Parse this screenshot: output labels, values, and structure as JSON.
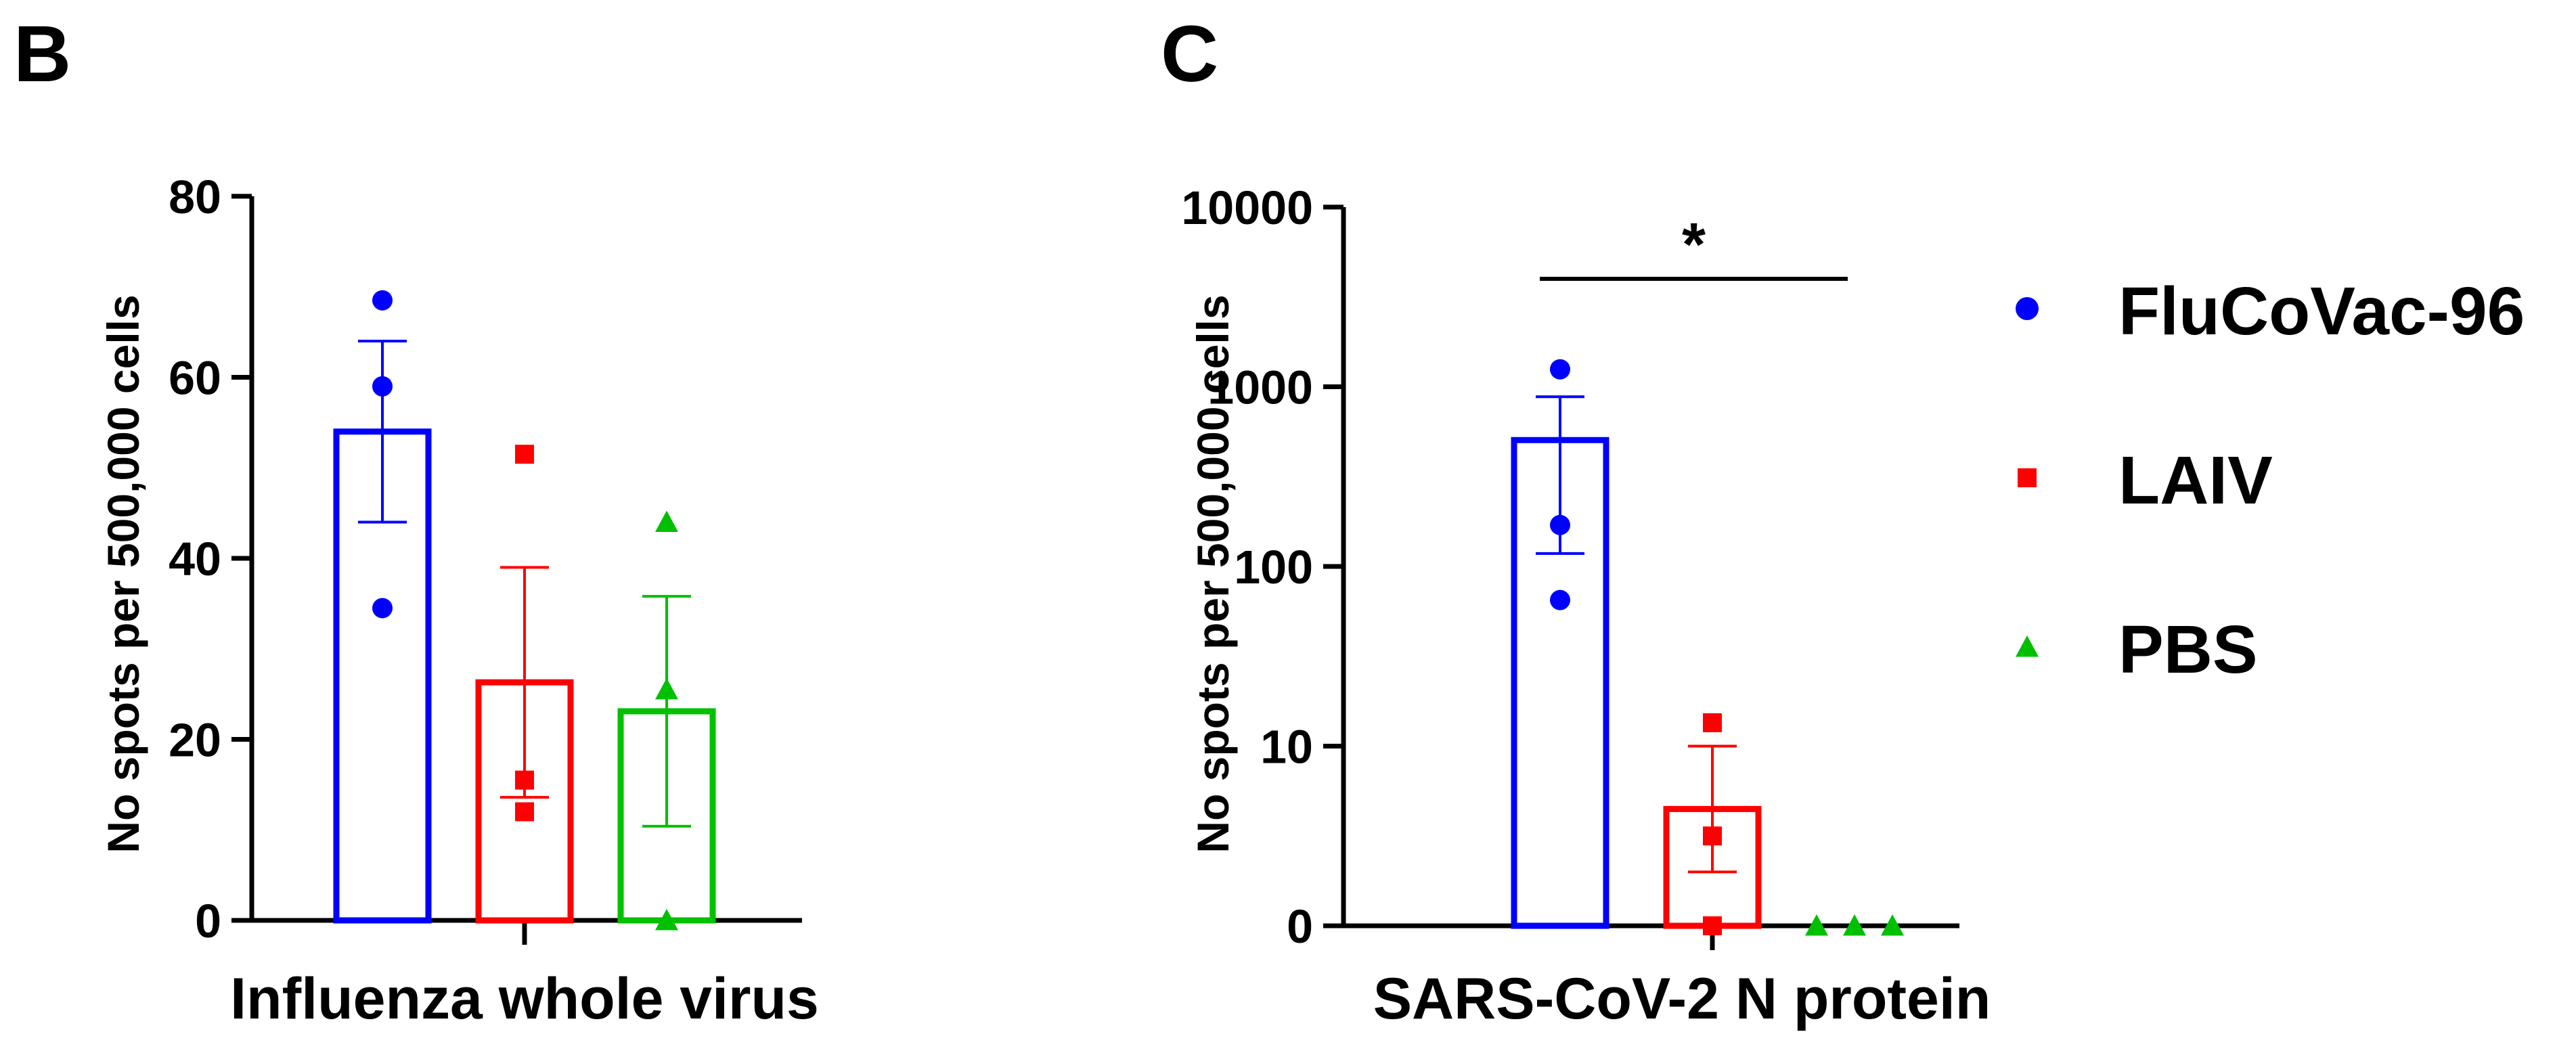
{
  "chart_data": [
    {
      "type": "bar",
      "panel_label": "B",
      "title": "",
      "xlabel": "Influenza whole virus",
      "ylabel": "No spots per 500,000 cells",
      "yscale": "linear",
      "ylim": [
        0,
        80
      ],
      "yticks": [
        0,
        20,
        40,
        60,
        80
      ],
      "ytick_labels": [
        "0",
        "20",
        "40",
        "60",
        "80"
      ],
      "grid": false,
      "series": [
        {
          "name": "FluCoVac-96",
          "color": "#0000ff",
          "marker": "circle",
          "mean": 54,
          "sem": 10,
          "points": [
            68.5,
            59,
            34.5
          ]
        },
        {
          "name": "LAIV",
          "color": "#ff0000",
          "marker": "square",
          "mean": 26.3,
          "sem": 12.7,
          "points": [
            51.5,
            15.5,
            12
          ]
        },
        {
          "name": "PBS",
          "color": "#00c000",
          "marker": "triangle",
          "mean": 23.1,
          "sem": 12.7,
          "points": [
            44,
            25.5,
            0
          ]
        }
      ]
    },
    {
      "type": "bar",
      "panel_label": "C",
      "title": "",
      "xlabel": "SARS-CoV-2 N protein",
      "ylabel": "No spots per 500,000 cells",
      "yscale": "log (zero at baseline)",
      "ylim": [
        0,
        10000
      ],
      "yticks": [
        0,
        10,
        100,
        1000,
        10000
      ],
      "ytick_labels": [
        "0",
        "10",
        "100",
        "1000",
        "10000"
      ],
      "grid": false,
      "series": [
        {
          "name": "FluCoVac-96",
          "color": "#0000ff",
          "marker": "circle",
          "mean": 505,
          "err_low": 118,
          "err_high": 880,
          "points": [
            1250,
            170,
            65
          ]
        },
        {
          "name": "LAIV",
          "color": "#ff0000",
          "marker": "square",
          "mean": 6.5,
          "err_low": 3,
          "err_high": 10,
          "points": [
            13.5,
            5,
            0
          ]
        },
        {
          "name": "PBS",
          "color": "#00c000",
          "marker": "triangle",
          "mean": 0,
          "err_low": 0,
          "err_high": 0,
          "points": [
            0,
            0,
            0
          ]
        }
      ],
      "annotations": [
        {
          "text": "*",
          "from_series": "FluCoVac-96",
          "to_series": "PBS"
        }
      ]
    }
  ],
  "legend": {
    "position": "right",
    "items": [
      {
        "label": "FluCoVac-96",
        "color": "#0000ff",
        "marker": "circle"
      },
      {
        "label": "LAIV",
        "color": "#ff0000",
        "marker": "square"
      },
      {
        "label": "PBS",
        "color": "#00c000",
        "marker": "triangle"
      }
    ]
  }
}
